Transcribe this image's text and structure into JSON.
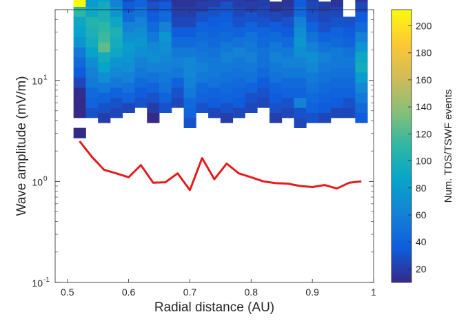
{
  "chart_data": {
    "type": "heatmap",
    "xlabel": "Radial distance (AU)",
    "ylabel": "Wave amplitude (mV/m)",
    "colorbar_label": "Num. TDS/TSWF events",
    "x_ticks": [
      "0.5",
      "0.6",
      "0.7",
      "0.8",
      "0.9",
      "1"
    ],
    "y_ticks": [
      {
        "base": "10",
        "exp": "-1"
      },
      {
        "base": "10",
        "exp": "0"
      },
      {
        "base": "10",
        "exp": "1"
      }
    ],
    "colorbar_ticks": [
      "20",
      "40",
      "60",
      "80",
      "100",
      "120",
      "140",
      "160",
      "180",
      "200"
    ],
    "xlim": [
      0.48,
      1.0
    ],
    "ylim_log10": [
      -1,
      1.7
    ],
    "clim": [
      10,
      212
    ],
    "bin_width_au": 0.02,
    "bin_height_log10": 0.1,
    "x_bins": [
      0.52,
      0.54,
      0.56,
      0.58,
      0.6,
      0.62,
      0.64,
      0.66,
      0.68,
      0.7,
      0.72,
      0.74,
      0.76,
      0.78,
      0.8,
      0.82,
      0.84,
      0.86,
      0.88,
      0.9,
      0.92,
      0.94,
      0.96,
      0.98
    ],
    "columns": [
      {
        "lo": 0.43,
        "counts": [
          5,
          0,
          8,
          6,
          12,
          25,
          35,
          45,
          55,
          75,
          85,
          90,
          110,
          212,
          130,
          80,
          55,
          45,
          40,
          30,
          22,
          15
        ]
      },
      {
        "lo": 0.63,
        "counts": [
          30,
          40,
          45,
          55,
          60,
          70,
          85,
          95,
          100,
          105,
          90,
          80,
          65,
          45,
          35,
          28,
          20,
          12
        ]
      },
      {
        "lo": 0.58,
        "counts": [
          20,
          30,
          40,
          55,
          70,
          85,
          95,
          125,
          115,
          110,
          100,
          95,
          85,
          70,
          50,
          35,
          22,
          15
        ]
      },
      {
        "lo": 0.63,
        "counts": [
          25,
          30,
          40,
          55,
          65,
          75,
          90,
          95,
          100,
          90,
          75,
          60,
          50,
          35,
          25,
          15
        ]
      },
      {
        "lo": 0.68,
        "counts": [
          25,
          40,
          50,
          60,
          70,
          75,
          80,
          70,
          60,
          45,
          35,
          25,
          15
        ]
      },
      {
        "lo": 0.73,
        "counts": [
          30,
          35,
          45,
          55,
          60,
          70,
          75,
          70,
          60,
          50,
          40,
          30,
          25,
          20,
          15,
          10
        ]
      },
      {
        "lo": 0.58,
        "counts": [
          10,
          20,
          30,
          40,
          50,
          60,
          70,
          65,
          55,
          45,
          35,
          30,
          20
        ]
      },
      {
        "lo": 0.68,
        "counts": [
          30,
          40,
          50,
          55,
          60,
          65,
          70,
          75,
          60,
          45,
          35,
          25
        ]
      },
      {
        "lo": 0.73,
        "counts": [
          25,
          30,
          40,
          55,
          60,
          55,
          45,
          35,
          25,
          20,
          15
        ]
      },
      {
        "lo": 0.53,
        "counts": [
          30,
          40,
          45,
          55,
          60,
          65,
          65,
          55,
          45,
          35,
          25,
          20,
          15
        ]
      },
      {
        "lo": 0.68,
        "counts": [
          30,
          40,
          45,
          55,
          60,
          55,
          50,
          45,
          40,
          30,
          20,
          15,
          10,
          8,
          5
        ]
      },
      {
        "lo": 0.63,
        "counts": [
          25,
          35,
          40,
          50,
          55,
          55,
          50,
          45,
          40,
          35,
          30,
          20,
          15
        ]
      },
      {
        "lo": 0.58,
        "counts": [
          20,
          30,
          40,
          45,
          50,
          55,
          60,
          55,
          45,
          40,
          35,
          30,
          20,
          15
        ]
      },
      {
        "lo": 0.63,
        "counts": [
          25,
          35,
          40,
          45,
          50,
          55,
          60,
          50,
          40,
          30,
          25,
          20
        ]
      },
      {
        "lo": 0.68,
        "counts": [
          25,
          30,
          40,
          50,
          55,
          60,
          55,
          50,
          40,
          30,
          20,
          15
        ]
      },
      {
        "lo": 0.73,
        "counts": [
          25,
          30,
          35,
          45,
          50,
          50,
          45,
          40,
          30,
          25,
          20,
          15,
          10,
          5
        ]
      },
      {
        "lo": 0.58,
        "counts": [
          20,
          30,
          35,
          40,
          50,
          55,
          60,
          55,
          45,
          35,
          25,
          15
        ]
      },
      {
        "lo": 0.63,
        "counts": [
          25,
          30,
          40,
          45,
          55,
          60,
          55,
          45,
          35,
          30,
          20,
          15
        ]
      },
      {
        "lo": 0.53,
        "counts": [
          25,
          30,
          60,
          40,
          45,
          55,
          60,
          70,
          75,
          70,
          60,
          45,
          35,
          25,
          15,
          10,
          5,
          0,
          0,
          5
        ]
      },
      {
        "lo": 0.58,
        "counts": [
          30,
          40,
          45,
          50,
          55,
          65,
          70,
          60,
          50,
          40,
          30,
          25,
          20,
          15
        ]
      },
      {
        "lo": 0.58,
        "counts": [
          25,
          35,
          40,
          45,
          50,
          55,
          60,
          50,
          40,
          30,
          25,
          20
        ]
      },
      {
        "lo": 0.63,
        "counts": [
          25,
          35,
          40,
          45,
          50,
          55,
          55,
          45,
          40,
          30,
          25,
          15,
          10
        ]
      },
      {
        "lo": 0.63,
        "counts": [
          25,
          30,
          40,
          45,
          50,
          55,
          50,
          40,
          35,
          30
        ]
      },
      {
        "lo": 0.58,
        "counts": [
          35,
          45,
          55,
          65,
          80,
          95,
          90,
          75,
          60,
          45,
          35,
          25,
          15,
          10,
          5
        ]
      }
    ],
    "median_line": {
      "color": "#e41a1c",
      "x": [
        0.52,
        0.54,
        0.56,
        0.58,
        0.6,
        0.62,
        0.64,
        0.66,
        0.68,
        0.7,
        0.72,
        0.74,
        0.76,
        0.78,
        0.8,
        0.82,
        0.84,
        0.86,
        0.88,
        0.9,
        0.92,
        0.94,
        0.96,
        0.98
      ],
      "y": [
        2.5,
        1.75,
        1.3,
        1.2,
        1.1,
        1.45,
        0.97,
        0.98,
        1.2,
        0.82,
        1.7,
        1.05,
        1.5,
        1.2,
        1.1,
        1.0,
        0.96,
        0.95,
        0.9,
        0.88,
        0.92,
        0.85,
        0.97,
        1.0
      ]
    }
  }
}
